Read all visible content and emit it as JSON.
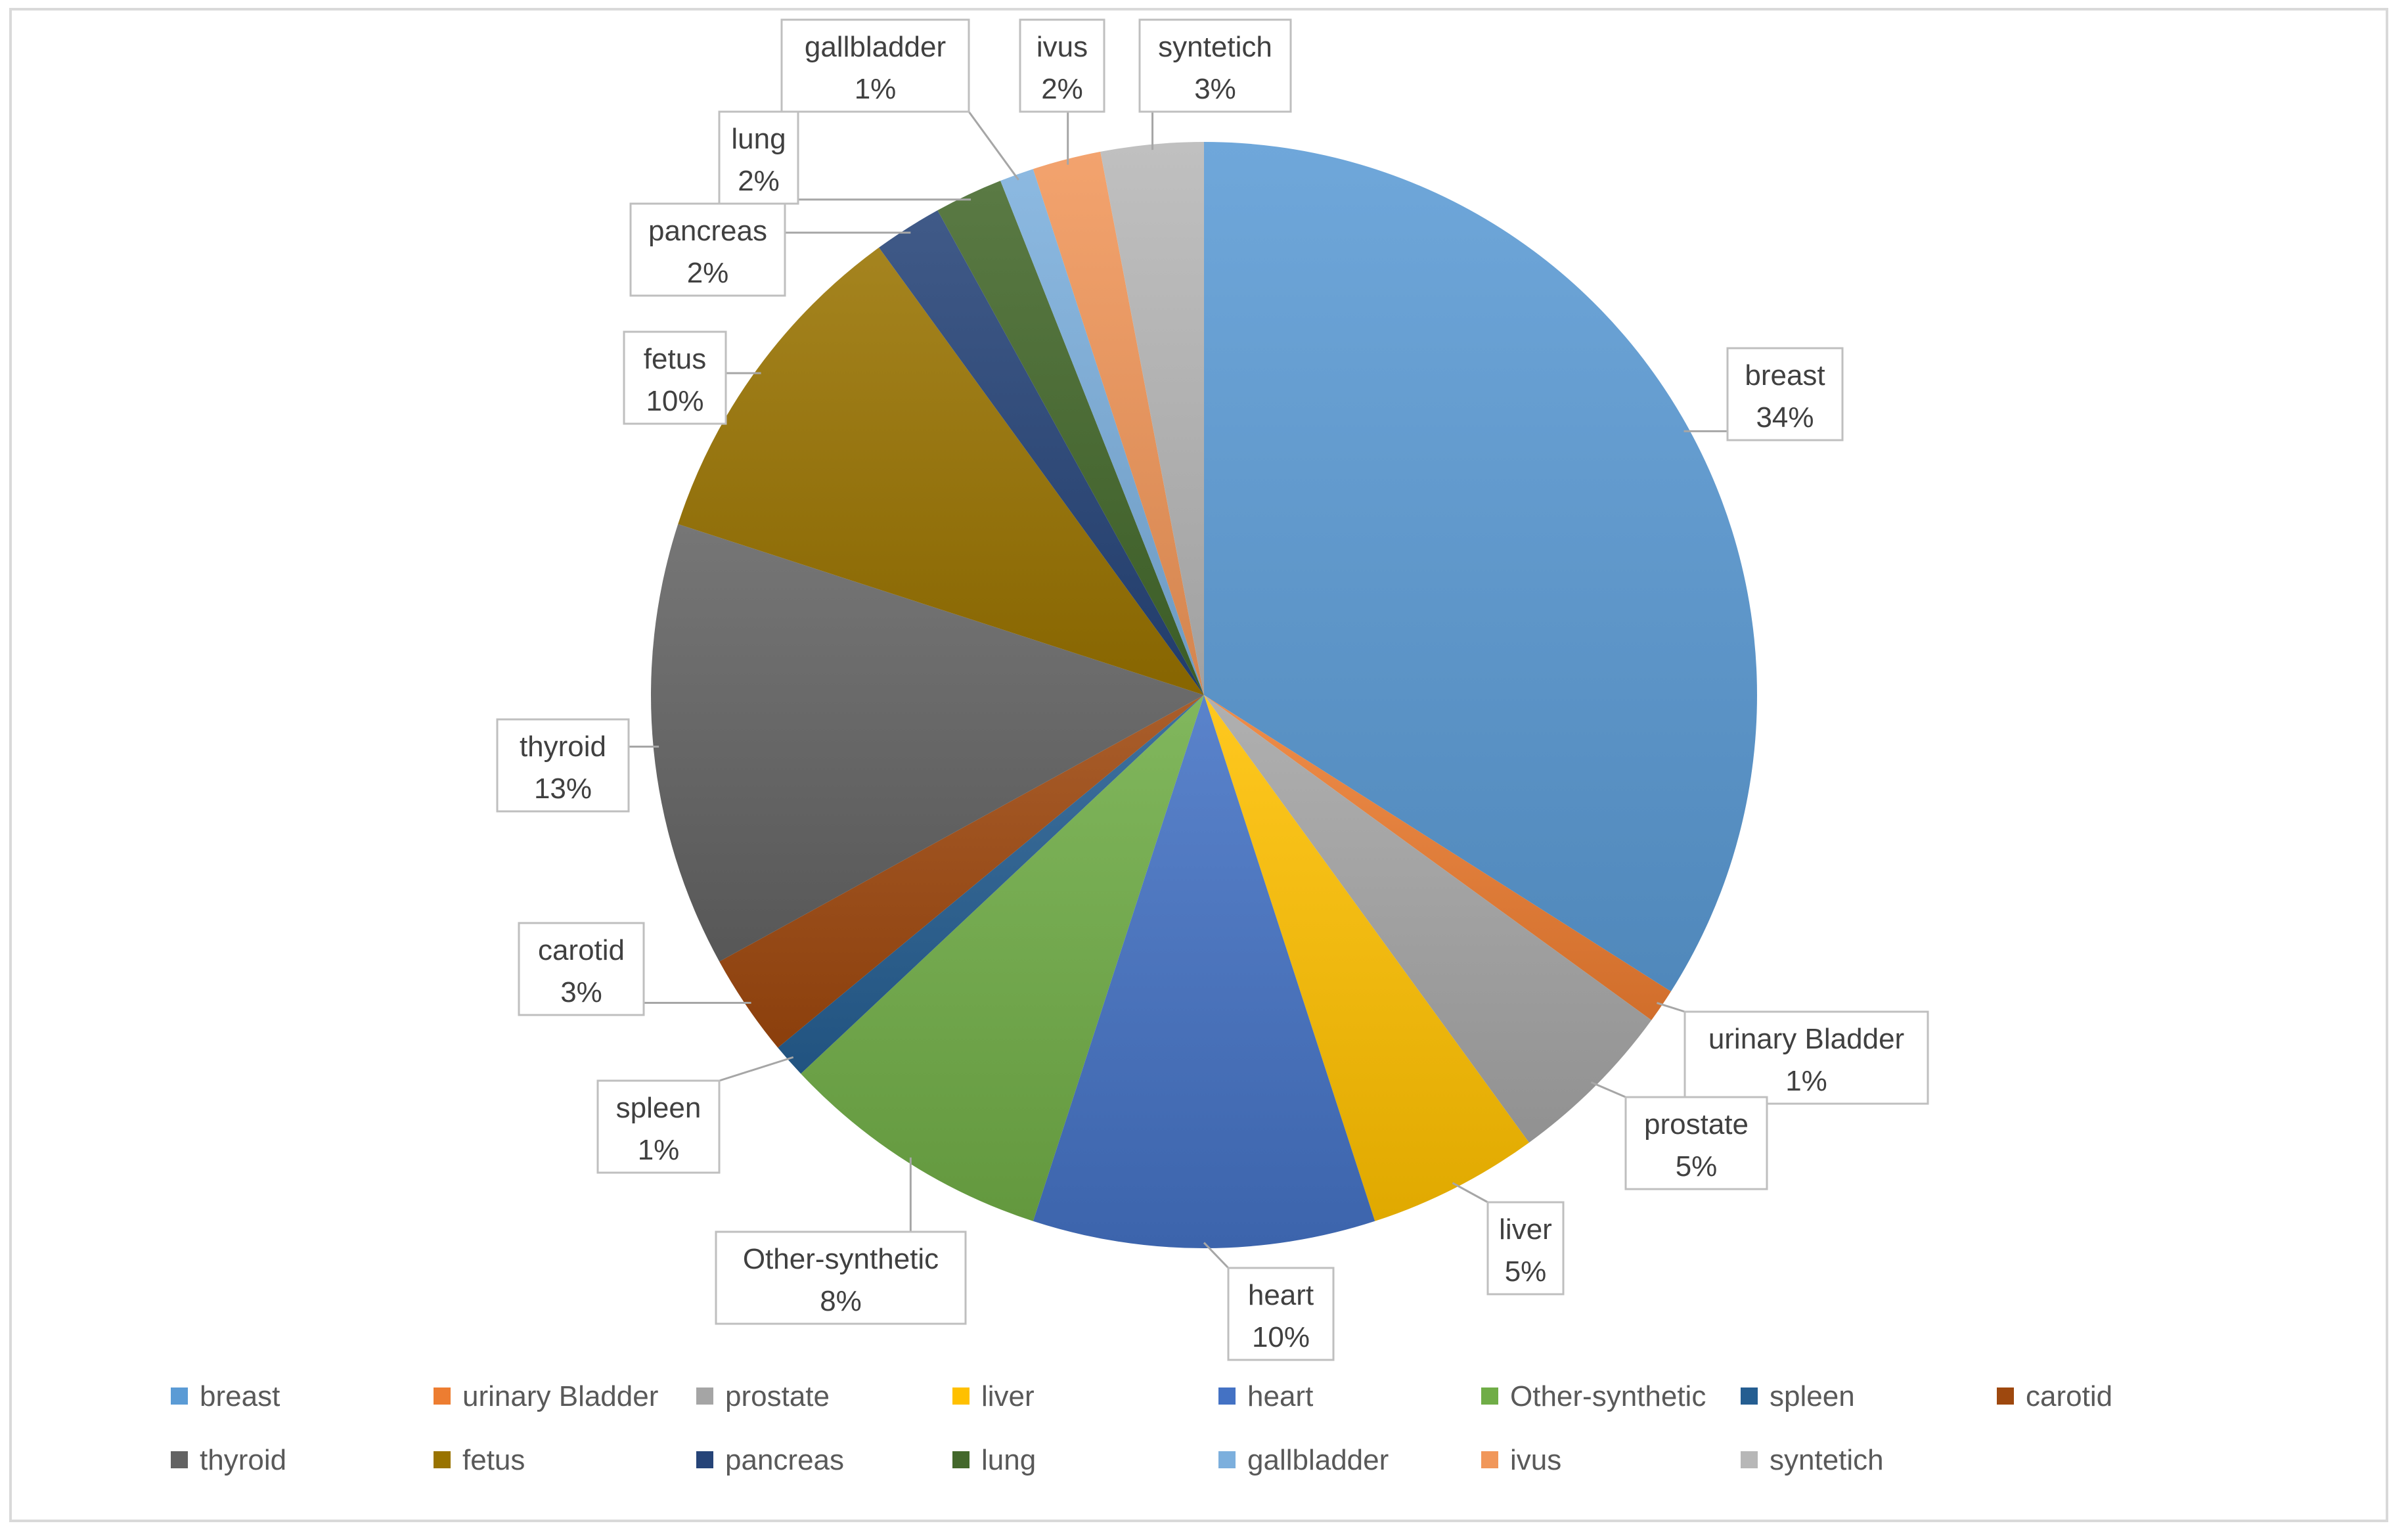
{
  "chart_data": {
    "type": "pie",
    "title": "",
    "legend_position": "bottom",
    "start_angle_deg": 0,
    "direction": "clockwise",
    "slices": [
      {
        "label": "breast",
        "value": 34,
        "value_label": "34%",
        "color": "#5b9bd5"
      },
      {
        "label": "urinary Bladder",
        "value": 1,
        "value_label": "1%",
        "color": "#ed7d31"
      },
      {
        "label": "prostate",
        "value": 5,
        "value_label": "5%",
        "color": "#a5a5a5"
      },
      {
        "label": "liver",
        "value": 5,
        "value_label": "5%",
        "color": "#ffc000"
      },
      {
        "label": "heart",
        "value": 10,
        "value_label": "10%",
        "color": "#4472c4"
      },
      {
        "label": "Other-synthetic",
        "value": 8,
        "value_label": "8%",
        "color": "#70ad47"
      },
      {
        "label": "spleen",
        "value": 1,
        "value_label": "1%",
        "color": "#255e91"
      },
      {
        "label": "carotid",
        "value": 3,
        "value_label": "3%",
        "color": "#9e480e"
      },
      {
        "label": "thyroid",
        "value": 13,
        "value_label": "13%",
        "color": "#636363"
      },
      {
        "label": "fetus",
        "value": 10,
        "value_label": "10%",
        "color": "#997300"
      },
      {
        "label": "pancreas",
        "value": 2,
        "value_label": "2%",
        "color": "#264478"
      },
      {
        "label": "lung",
        "value": 2,
        "value_label": "2%",
        "color": "#43682b"
      },
      {
        "label": "gallbladder",
        "value": 1,
        "value_label": "1%",
        "color": "#7cafdd"
      },
      {
        "label": "ivus",
        "value": 2,
        "value_label": "2%",
        "color": "#f1975a"
      },
      {
        "label": "syntetich",
        "value": 3,
        "value_label": "3%",
        "color": "#b7b7b7"
      }
    ]
  }
}
